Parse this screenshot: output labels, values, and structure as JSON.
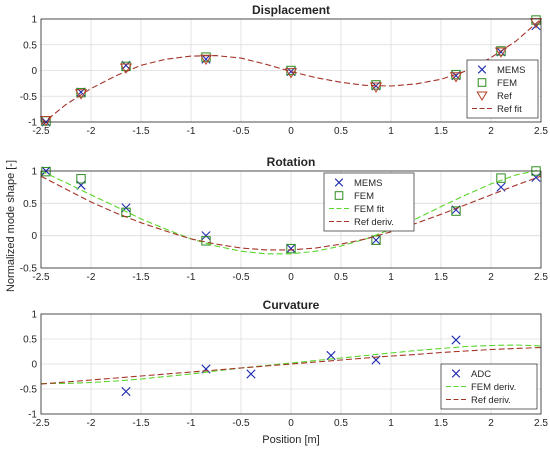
{
  "figure": {
    "ylabel": "Normalized mode shape [-]",
    "xlabel": "Position [m]"
  },
  "colors": {
    "mems": "#1f2bb0",
    "fem": "#2e8b1f",
    "ref": "#b5422a",
    "fem_fit": "#59d62a",
    "ref_fit": "#a5342a",
    "adc": "#1f2bb0",
    "grid": "#dcdcdc"
  },
  "chart_data": [
    {
      "type": "scatter",
      "title": "Displacement",
      "xlim": [
        -2.5,
        2.5
      ],
      "ylim": [
        -1,
        1
      ],
      "xticks": [
        -2.5,
        -2,
        -1.5,
        -1,
        -0.5,
        0,
        0.5,
        1,
        1.5,
        2,
        2.5
      ],
      "xtick_labels": [
        "-2.5",
        "-2",
        "-1.5",
        "-1",
        "-0.5",
        "0",
        "0.5",
        "1",
        "1.5",
        "2",
        "2.5"
      ],
      "yticks": [
        -1,
        -0.5,
        0,
        0.5,
        1
      ],
      "ytick_labels": [
        "-1",
        "-0.5",
        "0",
        "0.5",
        "1"
      ],
      "grid": true,
      "legend_position": "right",
      "series": [
        {
          "name": "MEMS",
          "marker": "x",
          "x": [
            -2.45,
            -2.1,
            -1.65,
            -0.85,
            0,
            0.85,
            1.65,
            2.1,
            2.45
          ],
          "y": [
            -1.0,
            -0.42,
            0.1,
            0.22,
            -0.02,
            -0.3,
            -0.1,
            0.36,
            0.87
          ]
        },
        {
          "name": "FEM",
          "marker": "square",
          "x": [
            -2.45,
            -2.1,
            -1.65,
            -0.85,
            0,
            0.85,
            1.65,
            2.1,
            2.45
          ],
          "y": [
            -0.98,
            -0.43,
            0.08,
            0.26,
            0.0,
            -0.28,
            -0.08,
            0.38,
            0.98
          ]
        },
        {
          "name": "Ref",
          "marker": "triangle-down",
          "x": [
            -2.45,
            -2.1,
            -1.65,
            -0.85,
            0,
            0.85,
            1.65,
            2.1,
            2.45
          ],
          "y": [
            -0.97,
            -0.45,
            0.05,
            0.22,
            -0.04,
            -0.32,
            -0.12,
            0.36,
            0.93
          ]
        },
        {
          "name": "Ref fit",
          "line": "dashed",
          "x": [
            -2.5,
            -2.25,
            -2.0,
            -1.75,
            -1.5,
            -1.25,
            -1.0,
            -0.75,
            -0.5,
            -0.25,
            0.0,
            0.25,
            0.5,
            0.75,
            1.0,
            1.25,
            1.5,
            1.75,
            2.0,
            2.25,
            2.5
          ],
          "y": [
            -1.05,
            -0.66,
            -0.35,
            -0.1,
            0.1,
            0.22,
            0.28,
            0.29,
            0.24,
            0.12,
            -0.02,
            -0.14,
            -0.23,
            -0.29,
            -0.3,
            -0.26,
            -0.17,
            -0.01,
            0.25,
            0.57,
            1.0
          ]
        }
      ]
    },
    {
      "type": "scatter",
      "title": "Rotation",
      "xlim": [
        -2.5,
        2.5
      ],
      "ylim": [
        -0.5,
        1
      ],
      "xticks": [
        -2.5,
        -2,
        -1.5,
        -1,
        -0.5,
        0,
        0.5,
        1,
        1.5,
        2,
        2.5
      ],
      "xtick_labels": [
        "-2.5",
        "-2",
        "-1.5",
        "-1",
        "-0.5",
        "0",
        "0.5",
        "1",
        "1.5",
        "2",
        "2.5"
      ],
      "yticks": [
        -0.5,
        0,
        0.5,
        1
      ],
      "ytick_labels": [
        "-0.5",
        "0",
        "0.5",
        "1"
      ],
      "grid": true,
      "legend_position": "top-center",
      "series": [
        {
          "name": "MEMS",
          "marker": "x",
          "x": [
            -2.45,
            -2.1,
            -1.65,
            -0.85,
            0,
            0.85,
            1.65,
            2.1,
            2.45
          ],
          "y": [
            1.0,
            0.78,
            0.43,
            0.0,
            -0.2,
            -0.07,
            0.4,
            0.75,
            0.9
          ]
        },
        {
          "name": "FEM",
          "marker": "square",
          "x": [
            -2.45,
            -2.1,
            -1.65,
            -0.85,
            0,
            0.85,
            1.65,
            2.1,
            2.45
          ],
          "y": [
            0.99,
            0.88,
            0.36,
            -0.08,
            -0.2,
            -0.07,
            0.38,
            0.89,
            1.0
          ]
        },
        {
          "name": "FEM fit",
          "line": "dashed",
          "x": [
            -2.5,
            -2.25,
            -2.0,
            -1.75,
            -1.5,
            -1.25,
            -1.0,
            -0.75,
            -0.5,
            -0.25,
            0.0,
            0.25,
            0.5,
            0.75,
            1.0,
            1.25,
            1.5,
            1.75,
            2.0,
            2.25,
            2.5
          ],
          "y": [
            1.0,
            0.82,
            0.63,
            0.45,
            0.26,
            0.1,
            -0.05,
            -0.16,
            -0.24,
            -0.28,
            -0.28,
            -0.24,
            -0.16,
            -0.05,
            0.1,
            0.26,
            0.45,
            0.63,
            0.8,
            0.94,
            1.02
          ]
        },
        {
          "name": "Ref deriv.",
          "line": "dashed",
          "x": [
            -2.5,
            -2.25,
            -2.0,
            -1.75,
            -1.5,
            -1.25,
            -1.0,
            -0.75,
            -0.5,
            -0.25,
            0.0,
            0.25,
            0.5,
            0.75,
            1.0,
            1.25,
            1.5,
            1.75,
            2.0,
            2.25,
            2.5
          ],
          "y": [
            0.92,
            0.72,
            0.52,
            0.35,
            0.2,
            0.07,
            -0.05,
            -0.13,
            -0.19,
            -0.22,
            -0.22,
            -0.19,
            -0.13,
            -0.05,
            0.06,
            0.19,
            0.33,
            0.48,
            0.63,
            0.78,
            0.92
          ]
        }
      ]
    },
    {
      "type": "scatter",
      "title": "Curvature",
      "xlim": [
        -2.5,
        2.5
      ],
      "ylim": [
        -1,
        1
      ],
      "xticks": [
        -2.5,
        -2,
        -1.5,
        -1,
        -0.5,
        0,
        0.5,
        1,
        1.5,
        2,
        2.5
      ],
      "xtick_labels": [
        "-2.5",
        "-2",
        "-1.5",
        "-1",
        "-0.5",
        "0",
        "0.5",
        "1",
        "1.5",
        "2",
        "2.5"
      ],
      "yticks": [
        -1,
        -0.5,
        0,
        0.5,
        1
      ],
      "ytick_labels": [
        "-1",
        "-0.5",
        "0",
        "0.5",
        "1"
      ],
      "grid": true,
      "legend_position": "bottom-right",
      "series": [
        {
          "name": "ADC",
          "marker": "x",
          "x": [
            -1.65,
            -0.85,
            -0.4,
            0.4,
            0.85,
            1.65
          ],
          "y": [
            -0.55,
            -0.1,
            -0.2,
            0.17,
            0.08,
            0.48
          ]
        },
        {
          "name": "FEM deriv.",
          "line": "dashed",
          "x": [
            -2.5,
            -2.25,
            -2.0,
            -1.75,
            -1.5,
            -1.25,
            -1.0,
            -0.75,
            -0.5,
            -0.25,
            0.0,
            0.25,
            0.5,
            0.75,
            1.0,
            1.25,
            1.5,
            1.75,
            2.0,
            2.25,
            2.5
          ],
          "y": [
            -0.39,
            -0.39,
            -0.37,
            -0.34,
            -0.3,
            -0.25,
            -0.2,
            -0.14,
            -0.08,
            -0.03,
            0.02,
            0.07,
            0.12,
            0.17,
            0.22,
            0.27,
            0.31,
            0.35,
            0.37,
            0.38,
            0.36
          ]
        },
        {
          "name": "Ref deriv.",
          "line": "dashed",
          "x": [
            -2.5,
            -2.25,
            -2.0,
            -1.75,
            -1.5,
            -1.25,
            -1.0,
            -0.75,
            -0.5,
            -0.25,
            0.0,
            0.25,
            0.5,
            0.75,
            1.0,
            1.25,
            1.5,
            1.75,
            2.0,
            2.25,
            2.5
          ],
          "y": [
            -0.4,
            -0.36,
            -0.32,
            -0.28,
            -0.24,
            -0.2,
            -0.16,
            -0.12,
            -0.08,
            -0.04,
            0.0,
            0.04,
            0.08,
            0.12,
            0.16,
            0.19,
            0.23,
            0.26,
            0.29,
            0.31,
            0.33
          ]
        }
      ]
    }
  ]
}
